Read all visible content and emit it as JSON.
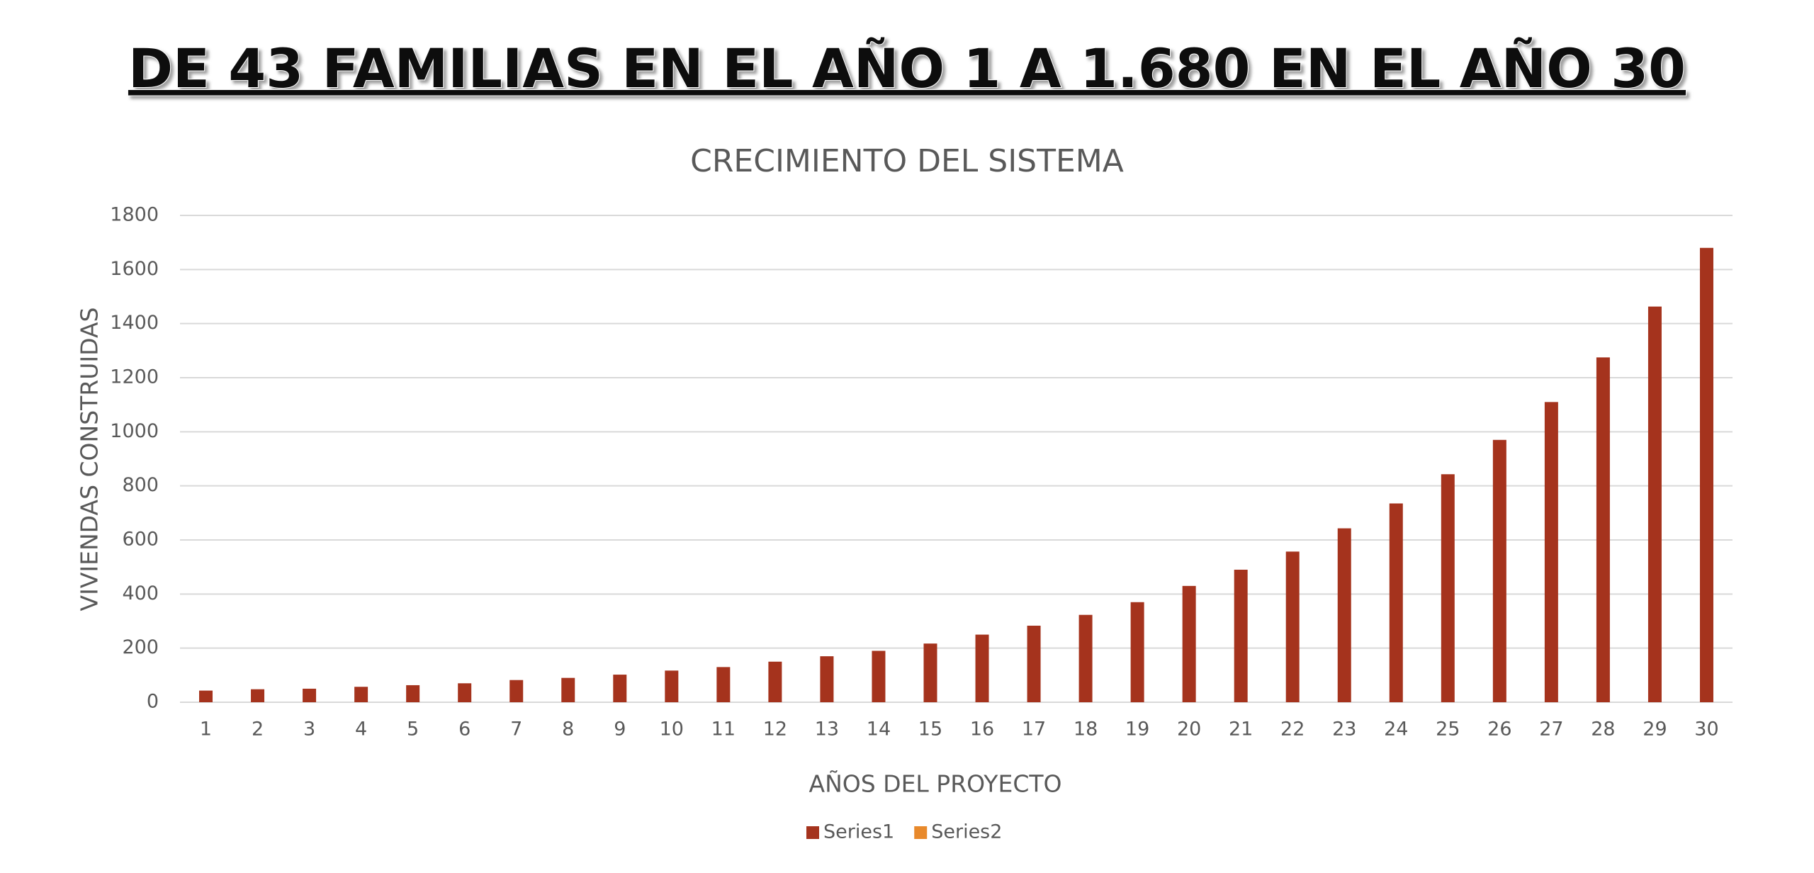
{
  "header": {
    "title": "DE 43 FAMILIAS EN EL AÑO 1 A 1.680 EN EL AÑO 30"
  },
  "chart_data": {
    "type": "bar",
    "title": "CRECIMIENTO DEL SISTEMA",
    "x_label": "AÑOS DEL PROYECTO",
    "y_label": "VIVIENDAS CONSTRUIDAS",
    "categories": [
      1,
      2,
      3,
      4,
      5,
      6,
      7,
      8,
      9,
      10,
      11,
      12,
      13,
      14,
      15,
      16,
      17,
      18,
      19,
      20,
      21,
      22,
      23,
      24,
      25,
      26,
      27,
      28,
      29,
      30
    ],
    "series": [
      {
        "name": "Series1",
        "color": "#a5331d",
        "values": [
          43,
          48,
          50,
          57,
          63,
          70,
          82,
          90,
          102,
          117,
          130,
          150,
          170,
          190,
          217,
          250,
          283,
          323,
          370,
          430,
          490,
          557,
          643,
          735,
          843,
          970,
          1110,
          1275,
          1463,
          1680
        ]
      },
      {
        "name": "Series2",
        "color": "#e8892b",
        "values": [
          0,
          0,
          0,
          0,
          0,
          0,
          0,
          0,
          0,
          0,
          0,
          0,
          0,
          0,
          0,
          0,
          0,
          0,
          0,
          0,
          0,
          0,
          0,
          0,
          0,
          0,
          0,
          0,
          0,
          0
        ]
      }
    ],
    "ylim": [
      0,
      1800
    ],
    "yticks": [
      0,
      200,
      400,
      600,
      800,
      1000,
      1200,
      1400,
      1600,
      1800
    ],
    "grid": true,
    "legend": "bottom"
  }
}
